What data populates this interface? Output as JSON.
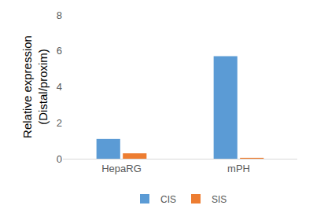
{
  "chart_data": {
    "type": "bar",
    "ylabel": "Relative expression\n(Distal/proxim)",
    "categories": [
      "HepaRG",
      "mPH"
    ],
    "series": [
      {
        "name": "CIS",
        "color": "#5b9bd5",
        "values": [
          1.1,
          5.7
        ]
      },
      {
        "name": "SIS",
        "color": "#ed7d31",
        "values": [
          0.3,
          0.05
        ]
      }
    ],
    "ylim": [
      0,
      8
    ],
    "yticks": [
      0,
      2,
      4,
      6,
      8
    ],
    "grid": false,
    "legend": "bottom"
  }
}
